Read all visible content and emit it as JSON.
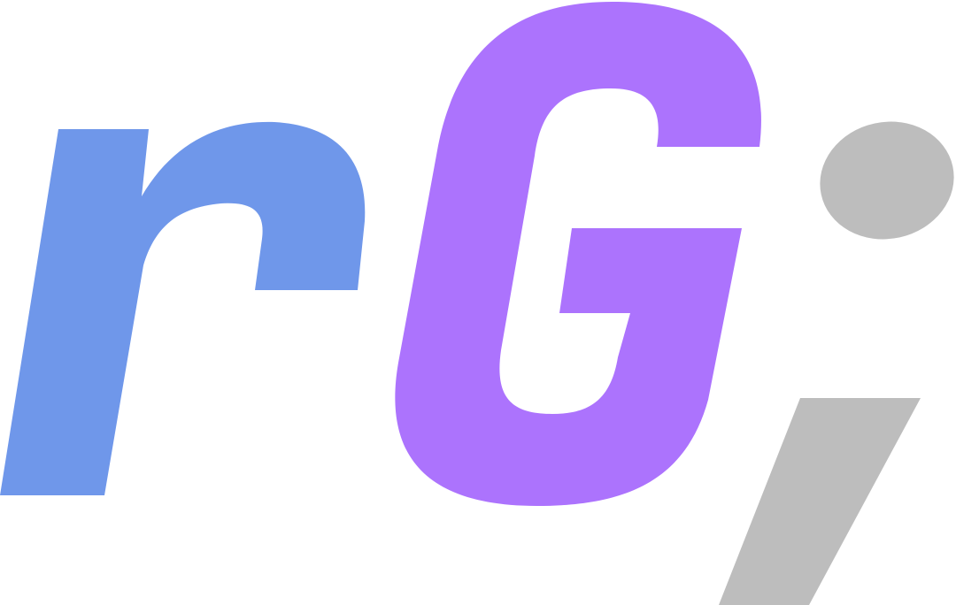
{
  "logo": {
    "text": "rGi",
    "letters": [
      {
        "char": "r",
        "color": "#6f97ea"
      },
      {
        "char": "G",
        "color": "#ac73fd"
      },
      {
        "char": "i",
        "color": "#bdbdbd"
      }
    ],
    "background": "#ffffff"
  }
}
